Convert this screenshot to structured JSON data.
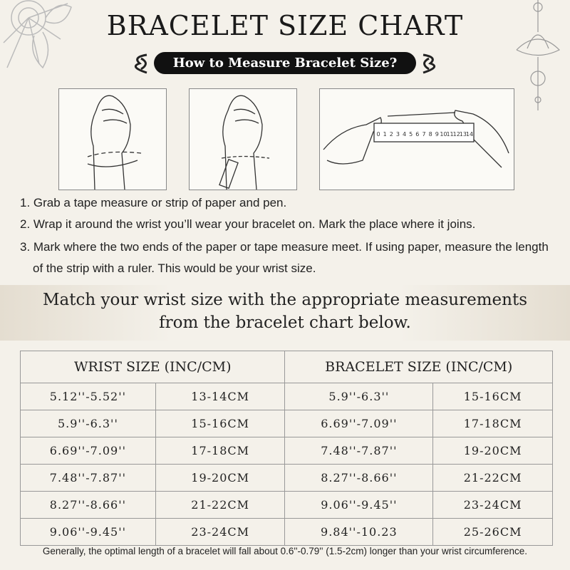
{
  "header": {
    "title": "BRACELET SIZE CHART",
    "subtitle": "How to Measure Bracelet Size?"
  },
  "ruler_labels": [
    "0",
    "1",
    "2",
    "3",
    "4",
    "5",
    "6",
    "7",
    "8",
    "9",
    "10",
    "11",
    "12",
    "13",
    "14"
  ],
  "steps": [
    "1. Grab a tape measure or strip of paper and pen.",
    "2. Wrap it around the wrist you’ll wear your bracelet on. Mark the place where it joins.",
    "3. Mark where the two ends of the paper or tape measure meet. If using paper, measure the length of the strip with a ruler. This would be your wrist size."
  ],
  "match": [
    "Match your wrist size with the appropriate measurements",
    "from the bracelet chart below."
  ],
  "table": {
    "headers": [
      "WRIST SIZE (INC/CM)",
      "BRACELET SIZE (INC/CM)"
    ],
    "rows": [
      [
        "5.12''-5.52''",
        "13-14CM",
        "5.9''-6.3''",
        "15-16CM"
      ],
      [
        "5.9''-6.3''",
        "15-16CM",
        "6.69''-7.09''",
        "17-18CM"
      ],
      [
        "6.69''-7.09''",
        "17-18CM",
        "7.48''-7.87''",
        "19-20CM"
      ],
      [
        "7.48''-7.87''",
        "19-20CM",
        "8.27''-8.66''",
        "21-22CM"
      ],
      [
        "8.27''-8.66''",
        "21-22CM",
        "9.06''-9.45''",
        "23-24CM"
      ],
      [
        "9.06''-9.45''",
        "23-24CM",
        "9.84''-10.23",
        "25-26CM"
      ]
    ]
  },
  "footnote": "Generally, the optimal length of a bracelet will fall about 0.6''-0.79'' (1.5-2cm) longer than your wrist circumference."
}
